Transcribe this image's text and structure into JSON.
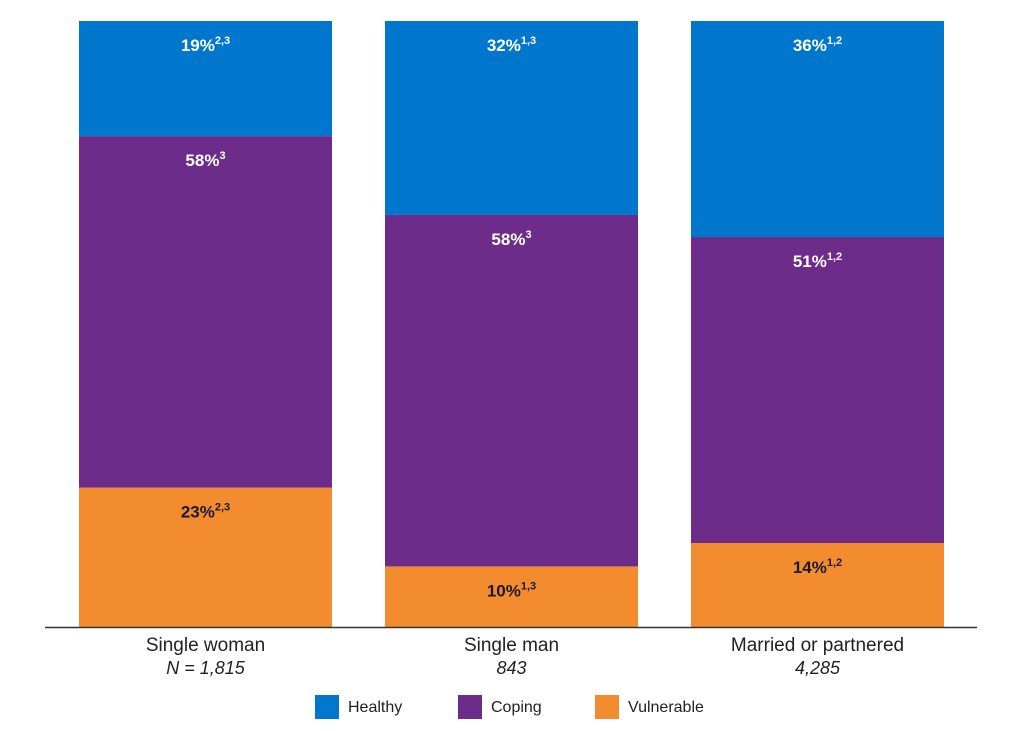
{
  "colors": {
    "Healthy": "#0077cc",
    "Coping": "#6e2c8a",
    "Vulnerable": "#f28c2e",
    "axis": "#333333"
  },
  "chart_data": {
    "type": "bar",
    "stacked": true,
    "percent_stacked": true,
    "ylim": [
      0,
      100
    ],
    "grid": false,
    "legend_position": "bottom",
    "categories": [
      {
        "name": "Single woman",
        "n": "N = 1,815"
      },
      {
        "name": "Single man",
        "n": "843"
      },
      {
        "name": "Married or partnered",
        "n": "4,285"
      }
    ],
    "series": [
      {
        "name": "Vulnerable",
        "values": [
          23,
          10,
          14
        ],
        "labels": [
          "23%",
          "10%",
          "14%"
        ],
        "superscripts": [
          "2,3",
          "1,3",
          "1,2"
        ]
      },
      {
        "name": "Coping",
        "values": [
          58,
          58,
          51
        ],
        "labels": [
          "58%",
          "58%",
          "51%"
        ],
        "superscripts": [
          "3",
          "3",
          "1,2"
        ]
      },
      {
        "name": "Healthy",
        "values": [
          19,
          32,
          36
        ],
        "labels": [
          "19%",
          "32%",
          "36%"
        ],
        "superscripts": [
          "2,3",
          "1,3",
          "1,2"
        ]
      }
    ],
    "legend": [
      "Healthy",
      "Coping",
      "Vulnerable"
    ]
  }
}
